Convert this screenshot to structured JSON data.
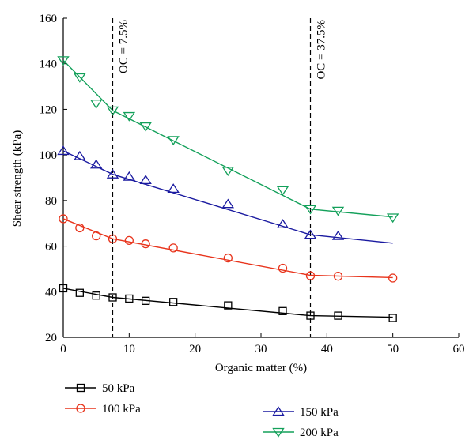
{
  "chart_data": {
    "type": "line",
    "xlabel": "Organic matter (%)",
    "ylabel": "Shear strength (kPa)",
    "xlim": [
      0,
      60
    ],
    "ylim": [
      20,
      160
    ],
    "xticks": [
      0,
      10,
      20,
      30,
      40,
      50,
      60
    ],
    "yticks": [
      20,
      40,
      60,
      80,
      100,
      120,
      140,
      160
    ],
    "grid": false,
    "legend_position": "bottom",
    "annotations": [
      {
        "x": 7.5,
        "label": "OC = 7.5%"
      },
      {
        "x": 37.5,
        "label": "OC = 37.5%"
      }
    ],
    "series": [
      {
        "name": "50 kPa",
        "color": "#000000",
        "marker": "square",
        "points": [
          [
            0,
            41.5
          ],
          [
            2.5,
            39.5
          ],
          [
            5,
            38.3
          ],
          [
            7.5,
            37.5
          ],
          [
            10,
            37
          ],
          [
            12.5,
            36
          ],
          [
            16.7,
            35.5
          ],
          [
            25,
            34
          ],
          [
            33.3,
            31.5
          ],
          [
            37.5,
            29.5
          ],
          [
            41.7,
            29.5
          ],
          [
            50,
            28.5
          ]
        ],
        "fit": [
          [
            0,
            41.5
          ],
          [
            7.5,
            37.5
          ],
          [
            37.5,
            29.5
          ],
          [
            50,
            28.8
          ]
        ]
      },
      {
        "name": "100 kPa",
        "color": "#e8341c",
        "marker": "circle",
        "points": [
          [
            0,
            72
          ],
          [
            2.5,
            68
          ],
          [
            5,
            64.5
          ],
          [
            7.5,
            63.2
          ],
          [
            10,
            62.5
          ],
          [
            12.5,
            61
          ],
          [
            16.7,
            59.2
          ],
          [
            25,
            54.8
          ],
          [
            33.3,
            50.3
          ],
          [
            37.5,
            47
          ],
          [
            41.7,
            46.8
          ],
          [
            50,
            46
          ]
        ],
        "fit": [
          [
            0,
            72
          ],
          [
            7.5,
            63.2
          ],
          [
            37.5,
            47.2
          ],
          [
            50,
            46.2
          ]
        ]
      },
      {
        "name": "150 kPa",
        "color": "#1a1aa0",
        "marker": "triangle-up",
        "points": [
          [
            0,
            101.8
          ],
          [
            2.5,
            99.5
          ],
          [
            5,
            95.8
          ],
          [
            7.5,
            91.5
          ],
          [
            10,
            90.5
          ],
          [
            12.5,
            89
          ],
          [
            16.7,
            85.2
          ],
          [
            25,
            78.5
          ],
          [
            33.3,
            69.6
          ],
          [
            37.5,
            65
          ],
          [
            41.7,
            64.5
          ]
        ],
        "fit": [
          [
            0,
            101.8
          ],
          [
            7.5,
            91.5
          ],
          [
            37.5,
            65
          ],
          [
            50,
            61.3
          ]
        ]
      },
      {
        "name": "200 kPa",
        "color": "#13a05a",
        "marker": "triangle-down",
        "points": [
          [
            0,
            141.5
          ],
          [
            2.5,
            134
          ],
          [
            5,
            122.5
          ],
          [
            7.5,
            119.5
          ],
          [
            10,
            117
          ],
          [
            12.5,
            112.5
          ],
          [
            16.7,
            106.5
          ],
          [
            25,
            93
          ],
          [
            33.3,
            84.5
          ],
          [
            37.5,
            76.2
          ],
          [
            41.7,
            75.5
          ],
          [
            50,
            72.5
          ]
        ],
        "fit": [
          [
            0,
            141.5
          ],
          [
            7.5,
            119.5
          ],
          [
            37.5,
            76.2
          ],
          [
            50,
            72.8
          ]
        ]
      }
    ]
  }
}
